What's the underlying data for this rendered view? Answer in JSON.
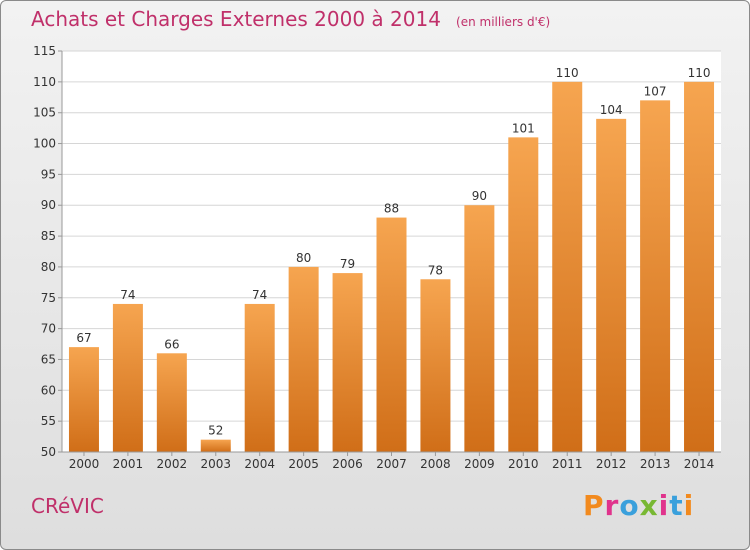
{
  "header": {
    "title": "Achats et Charges Externes 2000 à 2014",
    "subtitle": "(en milliers d'€)"
  },
  "footer": {
    "commune": "CRéVIC",
    "logo": "Proxiti",
    "logo_colors": [
      "#f28a1e",
      "#e0338c",
      "#3aa0dc",
      "#78b833",
      "#e0338c",
      "#3aa0dc",
      "#f28a1e"
    ]
  },
  "colors": {
    "bar_top": "#f6a550",
    "bar_bottom": "#d06e18",
    "grid": "#d6d6d6"
  },
  "chart_data": {
    "type": "bar",
    "categories": [
      "2000",
      "2001",
      "2002",
      "2003",
      "2004",
      "2005",
      "2006",
      "2007",
      "2008",
      "2009",
      "2010",
      "2011",
      "2012",
      "2013",
      "2014"
    ],
    "values": [
      67,
      74,
      66,
      52,
      74,
      80,
      79,
      88,
      78,
      90,
      101,
      110,
      104,
      107,
      110
    ],
    "ylim": [
      50,
      115
    ],
    "yticks": [
      50,
      55,
      60,
      65,
      70,
      75,
      80,
      85,
      90,
      95,
      100,
      105,
      110,
      115
    ],
    "grid": true,
    "legend": "none"
  }
}
